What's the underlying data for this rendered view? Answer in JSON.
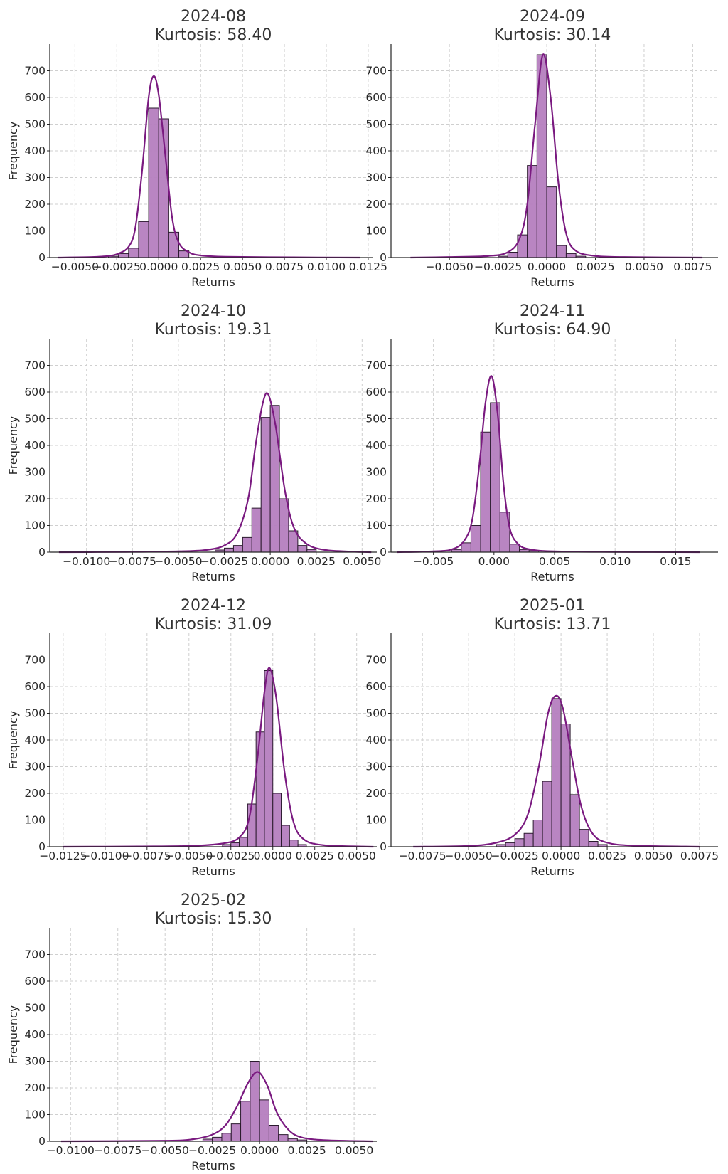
{
  "figure": {
    "colors": {
      "bar_fill": "#b57ebf",
      "bar_edge": "#2b1b2e",
      "kde": "#7a1a80",
      "grid": "#cfcfcf",
      "axis": "#262626"
    },
    "layout": "4x2 grid of histogram subplots with KDE curves; last cell empty"
  },
  "chart_data": [
    {
      "type": "bar",
      "title": "2024-08",
      "subtitle": "Kurtosis: 58.40",
      "xlabel": "Returns",
      "ylabel": "Frequency",
      "ylim": [
        0,
        800
      ],
      "yticks": [
        0,
        100,
        200,
        300,
        400,
        500,
        600,
        700
      ],
      "xlim": [
        -0.0065,
        0.0128
      ],
      "xticks": [
        -0.005,
        -0.0025,
        0.0,
        0.0025,
        0.005,
        0.0075,
        0.01,
        0.0125
      ],
      "xtick_labels": [
        "−0.0050",
        "−0.0025",
        "0.0000",
        "0.0025",
        "0.0050",
        "0.0075",
        "0.0100",
        "0.0125"
      ],
      "grid": true,
      "bin_edges": [
        -0.003,
        -0.0024,
        -0.0018,
        -0.0012,
        -0.0006,
        0.0,
        0.0006,
        0.0012,
        0.0018
      ],
      "values": [
        5,
        15,
        35,
        135,
        560,
        520,
        95,
        25
      ],
      "kde": [
        [
          -0.006,
          0
        ],
        [
          -0.004,
          2
        ],
        [
          -0.003,
          6
        ],
        [
          -0.0024,
          15
        ],
        [
          -0.0018,
          40
        ],
        [
          -0.0014,
          110
        ],
        [
          -0.001,
          320
        ],
        [
          -0.0006,
          600
        ],
        [
          -0.0003,
          680
        ],
        [
          0.0,
          610
        ],
        [
          0.0004,
          380
        ],
        [
          0.0008,
          150
        ],
        [
          0.0012,
          55
        ],
        [
          0.0018,
          20
        ],
        [
          0.0025,
          8
        ],
        [
          0.004,
          3
        ],
        [
          0.008,
          1
        ],
        [
          0.012,
          0
        ]
      ]
    },
    {
      "type": "bar",
      "title": "2024-09",
      "subtitle": "Kurtosis: 30.14",
      "xlabel": "Returns",
      "ylabel": "",
      "ylim": [
        0,
        800
      ],
      "yticks": [
        0,
        100,
        200,
        300,
        400,
        500,
        600,
        700
      ],
      "xlim": [
        -0.008,
        0.0088
      ],
      "xticks": [
        -0.005,
        -0.0025,
        0.0,
        0.0025,
        0.005,
        0.0075
      ],
      "xtick_labels": [
        "−0.0050",
        "−0.0025",
        "0.0000",
        "0.0025",
        "0.0050",
        "0.0075"
      ],
      "grid": true,
      "bin_edges": [
        -0.0025,
        -0.002,
        -0.0015,
        -0.001,
        -0.0005,
        0.0,
        0.0005,
        0.001,
        0.0015,
        0.002
      ],
      "values": [
        5,
        20,
        85,
        345,
        760,
        265,
        45,
        15,
        5
      ],
      "kde": [
        [
          -0.007,
          0
        ],
        [
          -0.005,
          2
        ],
        [
          -0.003,
          6
        ],
        [
          -0.002,
          20
        ],
        [
          -0.0014,
          70
        ],
        [
          -0.001,
          200
        ],
        [
          -0.0006,
          500
        ],
        [
          -0.0002,
          760
        ],
        [
          0.0002,
          600
        ],
        [
          0.0006,
          280
        ],
        [
          0.001,
          90
        ],
        [
          0.0015,
          25
        ],
        [
          0.0025,
          6
        ],
        [
          0.004,
          2
        ],
        [
          0.008,
          0
        ]
      ]
    },
    {
      "type": "bar",
      "title": "2024-10",
      "subtitle": "Kurtosis: 19.31",
      "xlabel": "Returns",
      "ylabel": "Frequency",
      "ylim": [
        0,
        800
      ],
      "yticks": [
        0,
        100,
        200,
        300,
        400,
        500,
        600,
        700
      ],
      "xlim": [
        -0.012,
        0.0058
      ],
      "xticks": [
        -0.01,
        -0.0075,
        -0.005,
        -0.0025,
        0.0,
        0.0025,
        0.005
      ],
      "xtick_labels": [
        "−0.0100",
        "−0.0075",
        "−0.0050",
        "−0.0025",
        "0.0000",
        "0.0025",
        "0.0050"
      ],
      "grid": true,
      "bin_edges": [
        -0.003,
        -0.0025,
        -0.002,
        -0.0015,
        -0.001,
        -0.0005,
        0.0,
        0.0005,
        0.001,
        0.0015,
        0.002,
        0.0025
      ],
      "values": [
        8,
        15,
        25,
        55,
        165,
        505,
        550,
        200,
        80,
        25,
        10
      ],
      "kde": [
        [
          -0.0115,
          0
        ],
        [
          -0.008,
          1
        ],
        [
          -0.005,
          3
        ],
        [
          -0.0035,
          8
        ],
        [
          -0.0025,
          25
        ],
        [
          -0.0018,
          70
        ],
        [
          -0.0012,
          200
        ],
        [
          -0.0008,
          400
        ],
        [
          -0.0004,
          560
        ],
        [
          -0.0001,
          590
        ],
        [
          0.0003,
          470
        ],
        [
          0.0008,
          230
        ],
        [
          0.0013,
          90
        ],
        [
          0.002,
          30
        ],
        [
          0.003,
          8
        ],
        [
          0.0045,
          2
        ],
        [
          0.0055,
          0
        ]
      ]
    },
    {
      "type": "bar",
      "title": "2024-11",
      "subtitle": "Kurtosis: 64.90",
      "xlabel": "Returns",
      "ylabel": "",
      "ylim": [
        0,
        800
      ],
      "yticks": [
        0,
        100,
        200,
        300,
        400,
        500,
        600,
        700
      ],
      "xlim": [
        -0.0085,
        0.0185
      ],
      "xticks": [
        -0.005,
        0.0,
        0.005,
        0.01,
        0.015
      ],
      "xtick_labels": [
        "−0.005",
        "0.000",
        "0.005",
        "0.010",
        "0.015"
      ],
      "grid": true,
      "bin_edges": [
        -0.0035,
        -0.0027,
        -0.0019,
        -0.0011,
        -0.0003,
        0.0005,
        0.0013,
        0.0021,
        0.0029,
        0.0037
      ],
      "values": [
        10,
        35,
        100,
        450,
        560,
        150,
        30,
        10,
        5
      ],
      "kde": [
        [
          -0.008,
          0
        ],
        [
          -0.005,
          3
        ],
        [
          -0.0035,
          10
        ],
        [
          -0.0025,
          40
        ],
        [
          -0.0018,
          120
        ],
        [
          -0.0012,
          330
        ],
        [
          -0.0007,
          560
        ],
        [
          -0.0002,
          660
        ],
        [
          0.0003,
          520
        ],
        [
          0.0008,
          250
        ],
        [
          0.0013,
          90
        ],
        [
          0.002,
          30
        ],
        [
          0.003,
          10
        ],
        [
          0.005,
          3
        ],
        [
          0.01,
          1
        ],
        [
          0.017,
          0
        ]
      ]
    },
    {
      "type": "bar",
      "title": "2024-12",
      "subtitle": "Kurtosis: 31.09",
      "xlabel": "Returns",
      "ylabel": "Frequency",
      "ylim": [
        0,
        800
      ],
      "yticks": [
        0,
        100,
        200,
        300,
        400,
        500,
        600,
        700
      ],
      "xlim": [
        -0.0133,
        0.0062
      ],
      "xticks": [
        -0.0125,
        -0.01,
        -0.0075,
        -0.005,
        -0.0025,
        0.0,
        0.0025,
        0.005
      ],
      "xtick_labels": [
        "−0.0125",
        "−0.0100",
        "−0.0075",
        "−0.0050",
        "−0.0025",
        "0.0000",
        "0.0025",
        "0.0050"
      ],
      "grid": true,
      "bin_edges": [
        -0.003,
        -0.0025,
        -0.002,
        -0.0015,
        -0.001,
        -0.0005,
        0.0,
        0.0005,
        0.001,
        0.0015,
        0.002
      ],
      "values": [
        8,
        15,
        35,
        160,
        430,
        660,
        200,
        80,
        25,
        8
      ],
      "kde": [
        [
          -0.0125,
          0
        ],
        [
          -0.008,
          1
        ],
        [
          -0.005,
          3
        ],
        [
          -0.003,
          12
        ],
        [
          -0.002,
          35
        ],
        [
          -0.0014,
          110
        ],
        [
          -0.0009,
          340
        ],
        [
          -0.0005,
          580
        ],
        [
          -0.0002,
          670
        ],
        [
          0.0002,
          560
        ],
        [
          0.0007,
          280
        ],
        [
          0.0012,
          100
        ],
        [
          0.0018,
          30
        ],
        [
          0.003,
          6
        ],
        [
          0.006,
          0
        ]
      ]
    },
    {
      "type": "bar",
      "title": "2025-01",
      "subtitle": "Kurtosis: 13.71",
      "xlabel": "Returns",
      "ylabel": "",
      "ylim": [
        0,
        800
      ],
      "yticks": [
        0,
        100,
        200,
        300,
        400,
        500,
        600,
        700
      ],
      "xlim": [
        -0.0092,
        0.0085
      ],
      "xticks": [
        -0.0075,
        -0.005,
        -0.0025,
        0.0,
        0.0025,
        0.005,
        0.0075
      ],
      "xtick_labels": [
        "−0.0075",
        "−0.0050",
        "−0.0025",
        "0.0000",
        "0.0025",
        "0.0050",
        "0.0075"
      ],
      "grid": true,
      "bin_edges": [
        -0.0035,
        -0.003,
        -0.0025,
        -0.002,
        -0.0015,
        -0.001,
        -0.0005,
        0.0,
        0.0005,
        0.001,
        0.0015,
        0.002,
        0.0025
      ],
      "values": [
        8,
        15,
        30,
        50,
        100,
        245,
        555,
        460,
        195,
        65,
        20,
        8
      ],
      "kde": [
        [
          -0.008,
          0
        ],
        [
          -0.005,
          3
        ],
        [
          -0.0035,
          15
        ],
        [
          -0.0025,
          45
        ],
        [
          -0.0018,
          120
        ],
        [
          -0.0012,
          300
        ],
        [
          -0.0007,
          500
        ],
        [
          -0.0003,
          565
        ],
        [
          0.0001,
          520
        ],
        [
          0.0006,
          330
        ],
        [
          0.0011,
          150
        ],
        [
          0.0017,
          50
        ],
        [
          0.0025,
          15
        ],
        [
          0.004,
          4
        ],
        [
          0.0075,
          0
        ]
      ]
    },
    {
      "type": "bar",
      "title": "2025-02",
      "subtitle": "Kurtosis: 15.30",
      "xlabel": "Returns",
      "ylabel": "Frequency",
      "ylim": [
        0,
        800
      ],
      "yticks": [
        0,
        100,
        200,
        300,
        400,
        500,
        600,
        700
      ],
      "xlim": [
        -0.0111,
        0.0062
      ],
      "xticks": [
        -0.01,
        -0.0075,
        -0.005,
        -0.0025,
        0.0,
        0.0025,
        0.005
      ],
      "xtick_labels": [
        "−0.0100",
        "−0.0075",
        "−0.0050",
        "−0.0025",
        "0.0000",
        "0.0025",
        "0.0050"
      ],
      "grid": true,
      "bin_edges": [
        -0.003,
        -0.0025,
        -0.002,
        -0.0015,
        -0.001,
        -0.0005,
        0.0,
        0.0005,
        0.001,
        0.0015,
        0.002,
        0.0025
      ],
      "values": [
        8,
        15,
        30,
        65,
        150,
        300,
        155,
        60,
        25,
        10,
        5
      ],
      "kde": [
        [
          -0.0105,
          0
        ],
        [
          -0.005,
          2
        ],
        [
          -0.0035,
          8
        ],
        [
          -0.0025,
          25
        ],
        [
          -0.0018,
          60
        ],
        [
          -0.0012,
          130
        ],
        [
          -0.0006,
          220
        ],
        [
          -0.0001,
          260
        ],
        [
          0.0004,
          210
        ],
        [
          0.0009,
          110
        ],
        [
          0.0015,
          45
        ],
        [
          0.0022,
          15
        ],
        [
          0.0035,
          4
        ],
        [
          0.006,
          0
        ]
      ]
    }
  ]
}
